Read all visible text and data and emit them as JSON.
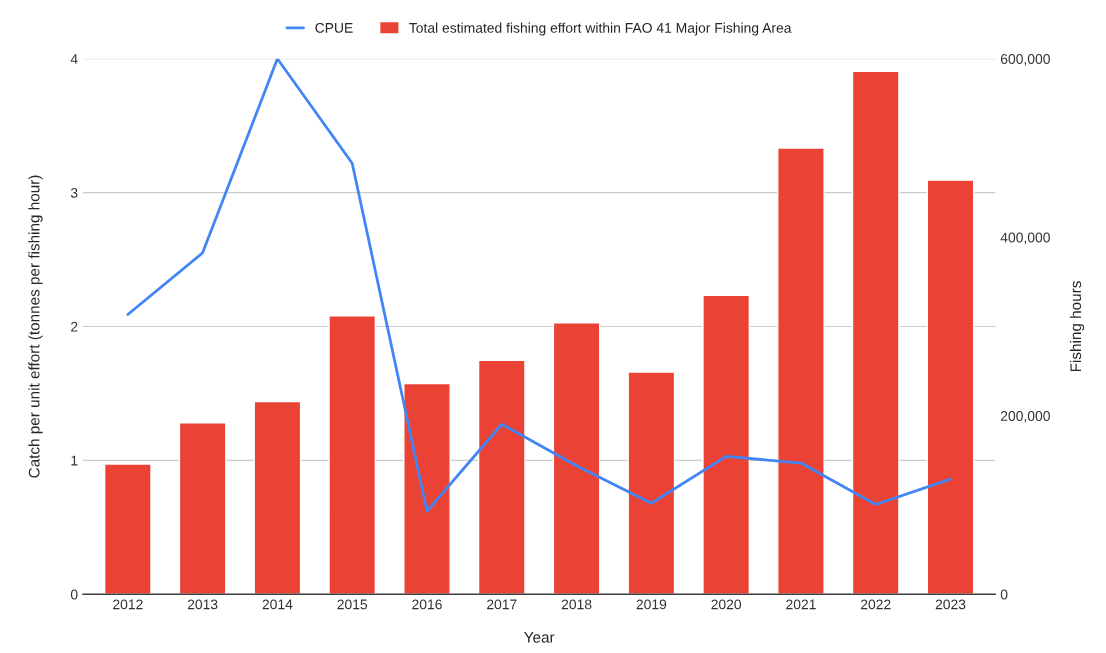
{
  "chart_data": {
    "type": "bar",
    "xlabel": "Year",
    "ylabel": "Catch per unit effort (tonnes per fishing hour)",
    "y2label": "Fishing hours",
    "categories": [
      "2012",
      "2013",
      "2014",
      "2015",
      "2016",
      "2017",
      "2018",
      "2019",
      "2020",
      "2021",
      "2022",
      "2023"
    ],
    "series": [
      {
        "name": "CPUE",
        "type": "line",
        "color": "#4285f4",
        "values": [
          2.09,
          2.55,
          4.0,
          3.22,
          0.62,
          1.27,
          0.96,
          0.68,
          1.03,
          0.98,
          0.67,
          0.86
        ]
      },
      {
        "name": "Total estimated fishing effort within FAO 41 Major Fishing Area",
        "axis": "y2",
        "color": "#ea4335",
        "values": [
          146000,
          192000,
          216000,
          312000,
          236000,
          262000,
          304000,
          249000,
          335000,
          500000,
          586000,
          464000
        ]
      }
    ],
    "ylim": [
      0,
      4
    ],
    "yticks": [
      0,
      1,
      2,
      3,
      4
    ],
    "y2lim": [
      0,
      600000
    ],
    "y2ticks": [
      {
        "value": 0,
        "label": "0"
      },
      {
        "value": 200000,
        "label": "200,000"
      },
      {
        "value": 400000,
        "label": "400,000"
      },
      {
        "value": 600000,
        "label": "600,000"
      }
    ],
    "grid": "y",
    "legend": "top",
    "marker": "none",
    "line_style": "solid"
  }
}
